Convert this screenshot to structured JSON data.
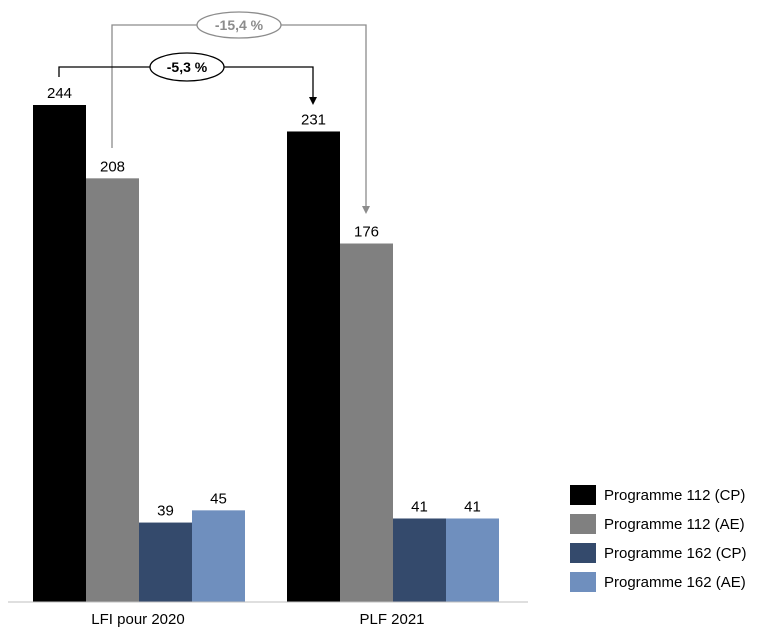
{
  "chart_data": {
    "type": "bar",
    "categories": [
      "LFI pour 2020",
      "PLF 2021"
    ],
    "series": [
      {
        "name": "Programme 112 (CP)",
        "values": [
          244,
          231
        ],
        "color": "#000000"
      },
      {
        "name": "Programme 112 (AE)",
        "values": [
          208,
          176
        ],
        "color": "#808080"
      },
      {
        "name": "Programme 162 (CP)",
        "values": [
          39,
          41
        ],
        "color": "#344a6c"
      },
      {
        "name": "Programme 162 (AE)",
        "values": [
          45,
          41
        ],
        "color": "#6f8fbe"
      }
    ],
    "ylim": [
      0,
      250
    ],
    "grid": false,
    "legend": "bottom-right",
    "annotations": [
      {
        "text": "-5,3 %",
        "from_series": 0,
        "color": "#000000"
      },
      {
        "text": "-15,4 %",
        "from_series": 1,
        "color": "#8c8c8c"
      }
    ]
  }
}
